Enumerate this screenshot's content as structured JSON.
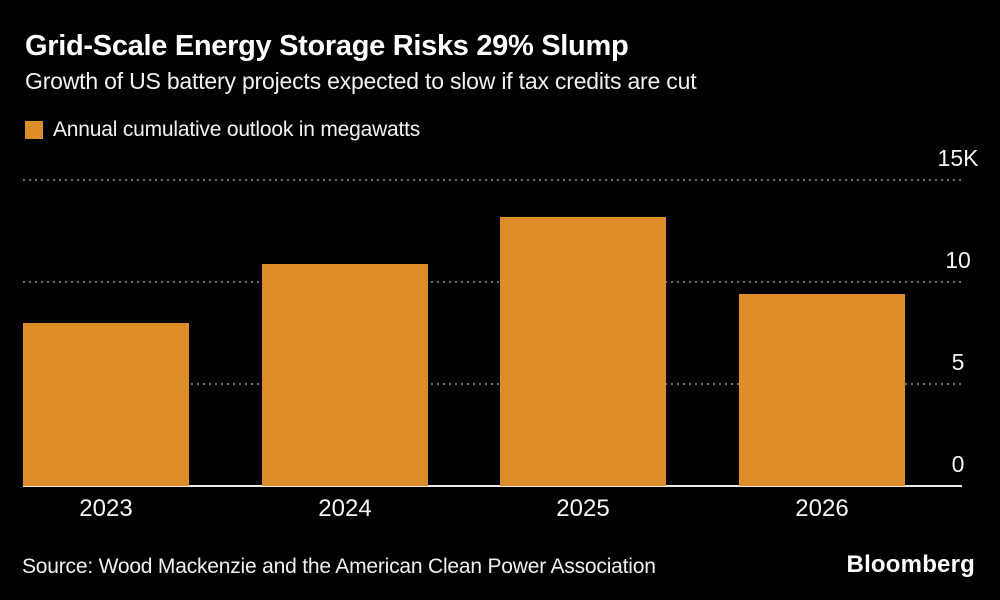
{
  "header": {
    "title": "Grid-Scale Energy Storage Risks 29% Slump",
    "subtitle": "Growth of US battery projects expected to slow if tax credits are cut"
  },
  "legend": {
    "label": "Annual cumulative outlook in megawatts",
    "swatch_color": "#DC8C28"
  },
  "chart_data": {
    "type": "bar",
    "title": "Grid-Scale Energy Storage Risks 29% Slump",
    "subtitle": "Growth of US battery projects expected to slow if tax credits are cut",
    "categories": [
      "2023",
      "2024",
      "2025",
      "2026"
    ],
    "values": [
      8.0,
      10.9,
      13.2,
      9.4
    ],
    "values_unit": "thousand megawatts",
    "series_name": "Annual cumulative outlook in megawatts",
    "xlabel": "",
    "ylabel": "",
    "ylim": [
      0,
      15
    ],
    "y_ticks": [
      {
        "label": "15K",
        "value": 15
      },
      {
        "label": "10",
        "value": 10
      },
      {
        "label": "5",
        "value": 5
      },
      {
        "label": "0",
        "value": 0
      }
    ],
    "grid": "horizontal-dotted",
    "legend_position": "top-left",
    "bar_color": "#DC8C28"
  },
  "colors": {
    "background": "#000000",
    "bar": "#DC8C28",
    "gridline": "#6E6E6E",
    "axis_line": "#E8E8E8",
    "text": "#FFFFFF"
  },
  "footer": {
    "source": "Source: Wood Mackenzie and the American Clean Power Association",
    "brand": "Bloomberg"
  }
}
